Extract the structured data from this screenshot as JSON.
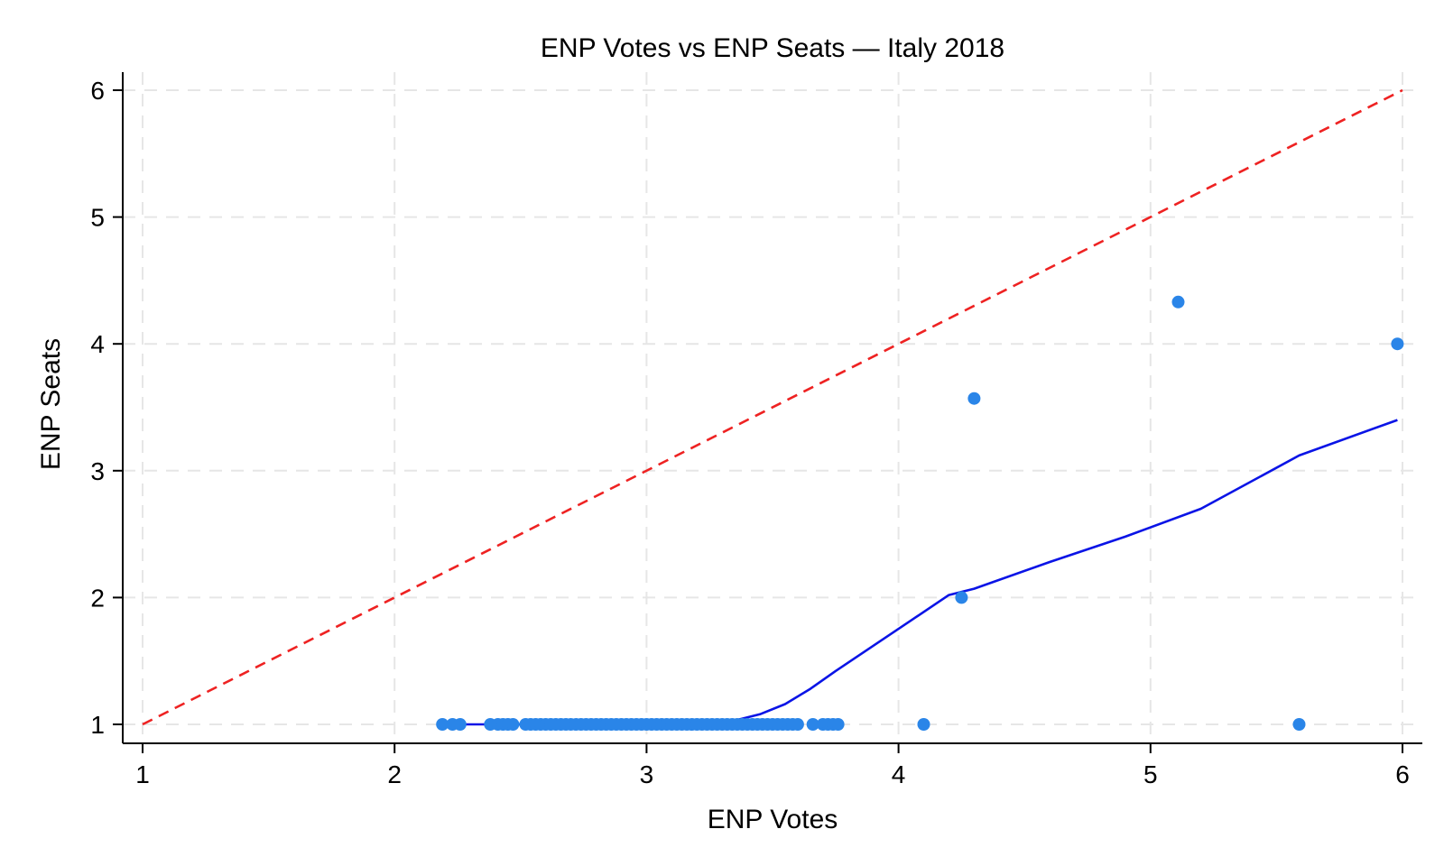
{
  "chart_data": {
    "type": "scatter",
    "title": "ENP Votes vs ENP Seats — Italy 2018",
    "xlabel": "ENP Votes",
    "ylabel": "ENP Seats",
    "xlim": [
      1,
      6
    ],
    "ylim": [
      1,
      6
    ],
    "xticks": [
      1,
      2,
      3,
      4,
      5,
      6
    ],
    "yticks": [
      1,
      2,
      3,
      4,
      5,
      6
    ],
    "grid": true,
    "legend": "none",
    "colors": {
      "points": "#2a85e8",
      "smoother": "#0a14e6",
      "reference": "#ee2222"
    },
    "series": [
      {
        "type": "scatter",
        "points": [
          [
            2.19,
            1
          ],
          [
            2.23,
            1
          ],
          [
            2.26,
            1
          ],
          [
            2.38,
            1
          ],
          [
            2.41,
            1
          ],
          [
            2.43,
            1
          ],
          [
            2.45,
            1
          ],
          [
            2.47,
            1
          ],
          [
            2.52,
            1
          ],
          [
            2.54,
            1
          ],
          [
            2.56,
            1
          ],
          [
            2.58,
            1
          ],
          [
            2.6,
            1
          ],
          [
            2.62,
            1
          ],
          [
            2.64,
            1
          ],
          [
            2.66,
            1
          ],
          [
            2.68,
            1
          ],
          [
            2.7,
            1
          ],
          [
            2.72,
            1
          ],
          [
            2.74,
            1
          ],
          [
            2.76,
            1
          ],
          [
            2.78,
            1
          ],
          [
            2.8,
            1
          ],
          [
            2.82,
            1
          ],
          [
            2.84,
            1
          ],
          [
            2.86,
            1
          ],
          [
            2.88,
            1
          ],
          [
            2.9,
            1
          ],
          [
            2.92,
            1
          ],
          [
            2.94,
            1
          ],
          [
            2.96,
            1
          ],
          [
            2.98,
            1
          ],
          [
            3.0,
            1
          ],
          [
            3.02,
            1
          ],
          [
            3.04,
            1
          ],
          [
            3.06,
            1
          ],
          [
            3.08,
            1
          ],
          [
            3.1,
            1
          ],
          [
            3.12,
            1
          ],
          [
            3.14,
            1
          ],
          [
            3.16,
            1
          ],
          [
            3.18,
            1
          ],
          [
            3.2,
            1
          ],
          [
            3.22,
            1
          ],
          [
            3.24,
            1
          ],
          [
            3.26,
            1
          ],
          [
            3.28,
            1
          ],
          [
            3.3,
            1
          ],
          [
            3.32,
            1
          ],
          [
            3.34,
            1
          ],
          [
            3.36,
            1
          ],
          [
            3.38,
            1
          ],
          [
            3.4,
            1
          ],
          [
            3.42,
            1
          ],
          [
            3.44,
            1
          ],
          [
            3.46,
            1
          ],
          [
            3.48,
            1
          ],
          [
            3.5,
            1
          ],
          [
            3.52,
            1
          ],
          [
            3.54,
            1
          ],
          [
            3.56,
            1
          ],
          [
            3.58,
            1
          ],
          [
            3.6,
            1
          ],
          [
            3.66,
            1
          ],
          [
            3.7,
            1
          ],
          [
            3.72,
            1
          ],
          [
            3.74,
            1
          ],
          [
            3.76,
            1
          ],
          [
            4.1,
            1
          ],
          [
            4.25,
            2.0
          ],
          [
            4.3,
            3.57
          ],
          [
            5.11,
            4.33
          ],
          [
            5.59,
            1
          ],
          [
            5.98,
            4.0
          ]
        ]
      },
      {
        "type": "line",
        "points": [
          [
            2.19,
            1.0
          ],
          [
            3.25,
            1.0
          ],
          [
            3.35,
            1.03
          ],
          [
            3.45,
            1.08
          ],
          [
            3.55,
            1.16
          ],
          [
            3.65,
            1.28
          ],
          [
            3.75,
            1.42
          ],
          [
            3.9,
            1.62
          ],
          [
            4.05,
            1.82
          ],
          [
            4.2,
            2.02
          ],
          [
            4.3,
            2.07
          ],
          [
            4.6,
            2.28
          ],
          [
            4.9,
            2.48
          ],
          [
            5.2,
            2.7
          ],
          [
            5.59,
            3.12
          ],
          [
            5.98,
            3.4
          ]
        ]
      },
      {
        "type": "line",
        "points": [
          [
            1,
            1
          ],
          [
            6,
            6
          ]
        ]
      }
    ]
  }
}
